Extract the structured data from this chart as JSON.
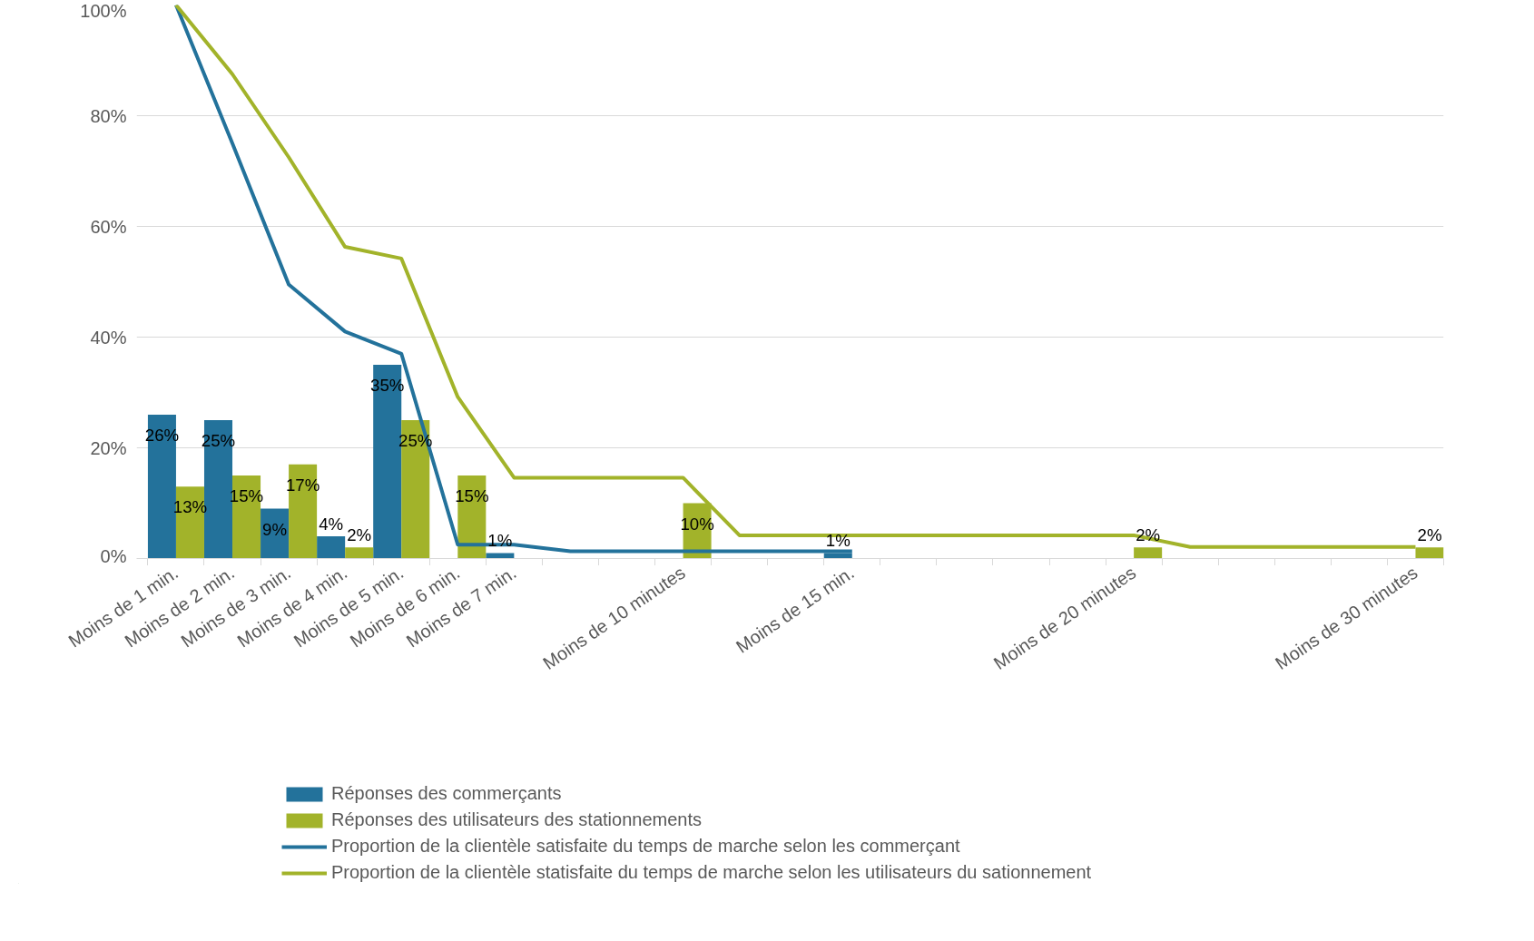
{
  "chart_data": {
    "type": "bar",
    "categories": [
      "Moins de 1 min.",
      "Moins de 2 min.",
      "Moins de 3 min.",
      "Moins de 4 min.",
      "Moins de 5 min.",
      "Moins de 6 min.",
      "Moins de 7 min.",
      null,
      null,
      "Moins de 10 minutes",
      null,
      null,
      "Moins de 15 min.",
      null,
      null,
      null,
      null,
      "Moins de 20 minutes",
      null,
      null,
      null,
      null,
      "Moins de 30 minutes"
    ],
    "series": [
      {
        "name": "Réponses des commerçants",
        "color": "#23729b",
        "values": [
          26,
          25,
          9,
          4,
          35,
          null,
          1,
          null,
          null,
          null,
          null,
          null,
          1,
          null,
          null,
          null,
          null,
          null,
          null,
          null,
          null,
          null,
          null
        ],
        "value_labels": [
          "26%",
          "25%",
          "9%",
          "4%",
          "35%",
          null,
          "1%",
          null,
          null,
          null,
          null,
          null,
          "1%",
          null,
          null,
          null,
          null,
          null,
          null,
          null,
          null,
          null,
          null
        ]
      },
      {
        "name": "Réponses des utilisateurs des stationnements",
        "color": "#a2b32a",
        "values": [
          13,
          15,
          17,
          2,
          25,
          15,
          null,
          null,
          null,
          10,
          null,
          null,
          null,
          null,
          null,
          null,
          null,
          2,
          null,
          null,
          null,
          null,
          2
        ],
        "value_labels": [
          "13%",
          "15%",
          "17%",
          "2%",
          "25%",
          "15%",
          null,
          null,
          null,
          "10%",
          null,
          null,
          null,
          null,
          null,
          null,
          null,
          "2%",
          null,
          null,
          null,
          null,
          "2%"
        ]
      },
      {
        "name": "Proportion de la clientèle satisfaite du temps de marche selon les commerçant",
        "type": "line",
        "color": "#23729b",
        "values": [
          100,
          75,
          49.5,
          41,
          37,
          2.5,
          2.5,
          1.3,
          1.3,
          1.3,
          1.3,
          1.3,
          1.3,
          null,
          null,
          null,
          null,
          null,
          null,
          null,
          null,
          null,
          null
        ]
      },
      {
        "name": "Proportion de la clientèle statisfaite du temps de marche selon les utilisateurs du sationnement",
        "type": "line",
        "color": "#a2b32a",
        "values": [
          100,
          87.5,
          72.5,
          56.3,
          54.2,
          29.2,
          14.6,
          14.6,
          14.6,
          14.6,
          4.2,
          4.2,
          4.2,
          4.2,
          4.2,
          4.2,
          4.2,
          4.2,
          2.1,
          2.1,
          2.1,
          2.1,
          2.1
        ]
      }
    ],
    "ylim": [
      0,
      100
    ],
    "yticks": [
      {
        "value": 0,
        "label": "0%"
      },
      {
        "value": 20,
        "label": "20%"
      },
      {
        "value": 40,
        "label": "40%"
      },
      {
        "value": 60,
        "label": "60%"
      },
      {
        "value": 80,
        "label": "80%"
      },
      {
        "value": 100,
        "label": "100%"
      }
    ],
    "grid": "y",
    "legend": "bottom",
    "marker": "none",
    "line_style": "solid"
  }
}
